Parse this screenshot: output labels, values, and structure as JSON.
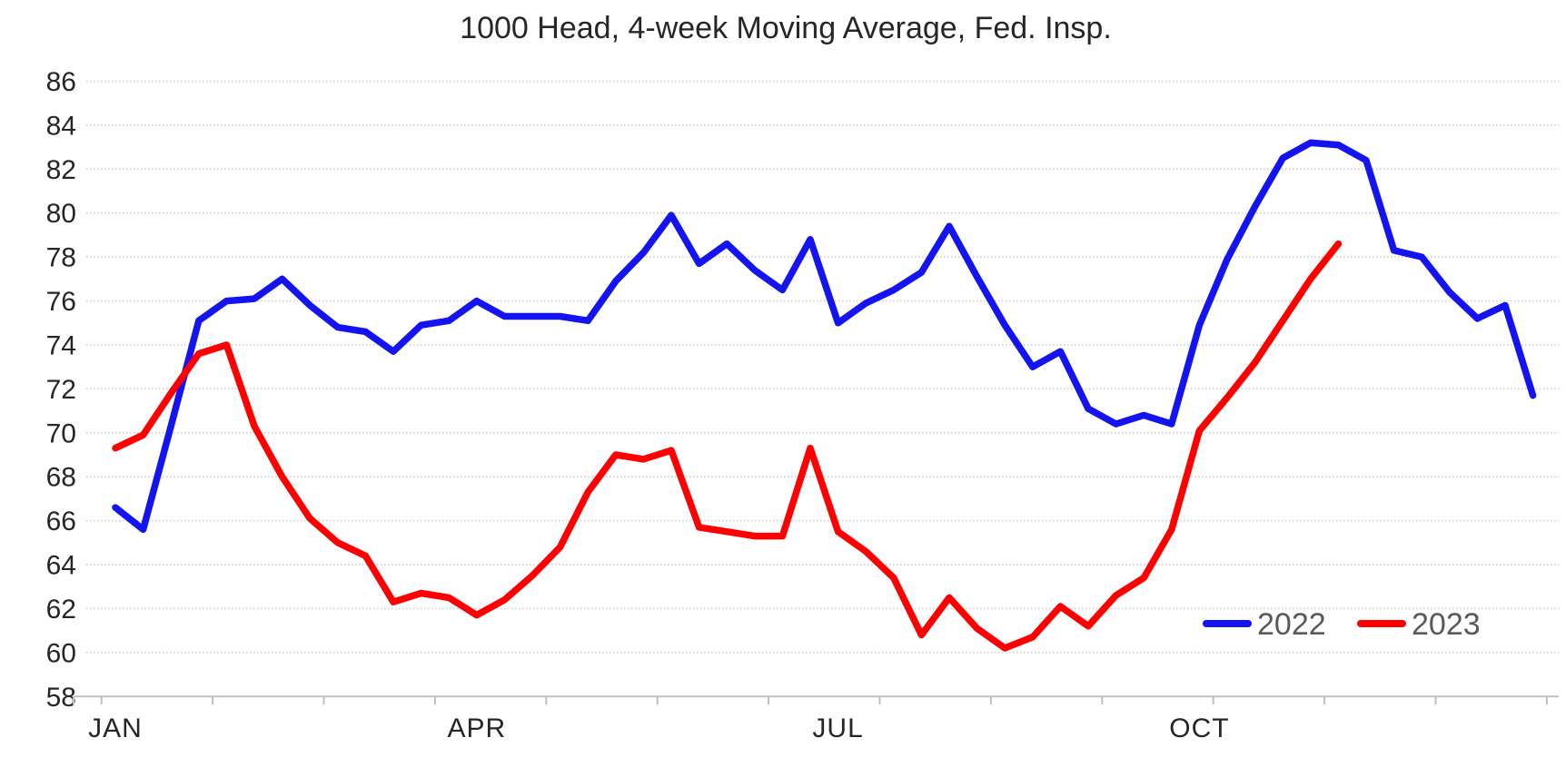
{
  "chart_data": {
    "type": "line",
    "title": "1000 Head, 4-week Moving Average, Fed. Insp.",
    "ylabel": "",
    "xlabel": "",
    "ylim": [
      58,
      86
    ],
    "y_ticks": [
      58,
      60,
      62,
      64,
      66,
      68,
      70,
      72,
      74,
      76,
      78,
      80,
      82,
      84,
      86
    ],
    "x_unit": "week",
    "x_tick_labels": [
      {
        "label": "JAN",
        "week": 1
      },
      {
        "label": "APR",
        "week": 14
      },
      {
        "label": "JUL",
        "week": 27
      },
      {
        "label": "OCT",
        "week": 40
      }
    ],
    "grid": "horizontal-dotted",
    "legend_position": "bottom-right",
    "series": [
      {
        "name": "2022",
        "color": "#1414f0",
        "values": [
          66.6,
          65.6,
          70.3,
          75.1,
          76.0,
          76.1,
          77.0,
          75.8,
          74.8,
          74.6,
          73.7,
          74.9,
          75.1,
          76.0,
          75.3,
          75.3,
          75.3,
          75.1,
          76.9,
          78.2,
          79.9,
          77.7,
          78.6,
          77.4,
          76.5,
          78.8,
          75.0,
          75.9,
          76.5,
          77.3,
          79.4,
          77.1,
          74.9,
          73.0,
          73.7,
          71.1,
          70.4,
          70.8,
          70.4,
          74.9,
          77.9,
          80.3,
          82.5,
          83.2,
          83.1,
          82.4,
          78.3,
          78.0,
          76.4,
          75.2,
          75.8,
          71.7
        ]
      },
      {
        "name": "2023",
        "color": "#ff0000",
        "values": [
          69.3,
          69.9,
          71.8,
          73.6,
          74.0,
          70.3,
          68.0,
          66.1,
          65.0,
          64.4,
          62.3,
          62.7,
          62.5,
          61.7,
          62.4,
          63.5,
          64.8,
          67.3,
          69.0,
          68.8,
          69.2,
          65.7,
          65.5,
          65.3,
          65.3,
          69.3,
          65.5,
          64.6,
          63.4,
          60.8,
          62.5,
          61.1,
          60.2,
          60.7,
          62.1,
          61.2,
          62.6,
          63.4,
          65.6,
          70.1,
          71.6,
          73.2,
          75.1,
          77.0,
          78.6
        ]
      }
    ],
    "colors": {
      "grid": "#cccccc",
      "axis": "#bfbfbf",
      "text": "#262626",
      "legend_text": "#595959"
    }
  }
}
